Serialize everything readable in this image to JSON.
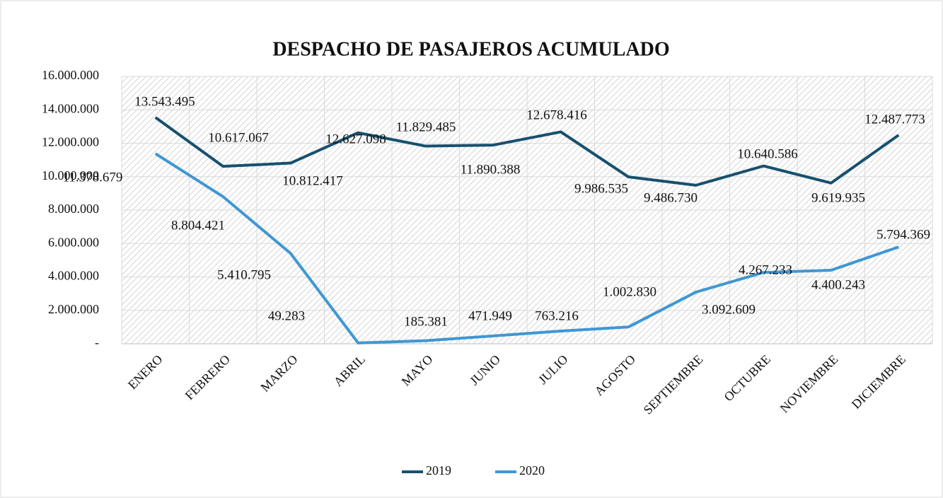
{
  "chart_data": {
    "type": "line",
    "title": "DESPACHO DE PASAJEROS ACUMULADO",
    "categories": [
      "ENERO",
      "FEBRERO",
      "MARZO",
      "ABRIL",
      "MAYO",
      "JUNIO",
      "JULIO",
      "AGOSTO",
      "SEPTIEMBRE",
      "OCTUBRE",
      "NOVIEMBRE",
      "DICIEMBRE"
    ],
    "series": [
      {
        "name": "2019",
        "color": "#17506e",
        "values": [
          13543495,
          10617067,
          10812417,
          12627098,
          11829485,
          11890388,
          12678416,
          9986535,
          9486730,
          10640586,
          9619935,
          12487773
        ],
        "value_labels": [
          "13.543.495",
          "10.617.067",
          "10.812.417",
          "12.627.098",
          "11.829.485",
          "11.890.388",
          "12.678.416",
          "9.986.535",
          "9.486.730",
          "10.640.586",
          "9.619.935",
          "12.487.773"
        ]
      },
      {
        "name": "2020",
        "color": "#3f97d3",
        "values": [
          11378679,
          8804421,
          5410795,
          49283,
          185381,
          471949,
          763216,
          1002830,
          3092609,
          4267233,
          4400243,
          5794369
        ],
        "value_labels": [
          "11.378.679",
          "8.804.421",
          "5.410.795",
          "49.283",
          "185.381",
          "471.949",
          "763.216",
          "1.002.830",
          "3.092.609",
          "4.267.233",
          "4.400.243",
          "5.794.369"
        ]
      }
    ],
    "ylim": [
      0,
      16000000
    ],
    "yticks": [
      {
        "value": 0,
        "label": "-"
      },
      {
        "value": 2000000,
        "label": "2.000.000"
      },
      {
        "value": 4000000,
        "label": "4.000.000"
      },
      {
        "value": 6000000,
        "label": "6.000.000"
      },
      {
        "value": 8000000,
        "label": "8.000.000"
      },
      {
        "value": 10000000,
        "label": "10.000.000"
      },
      {
        "value": 12000000,
        "label": "12.000.000"
      },
      {
        "value": 14000000,
        "label": "14.000.000"
      },
      {
        "value": 16000000,
        "label": "16.000.000"
      }
    ],
    "grid": true,
    "legend": "bottom"
  }
}
